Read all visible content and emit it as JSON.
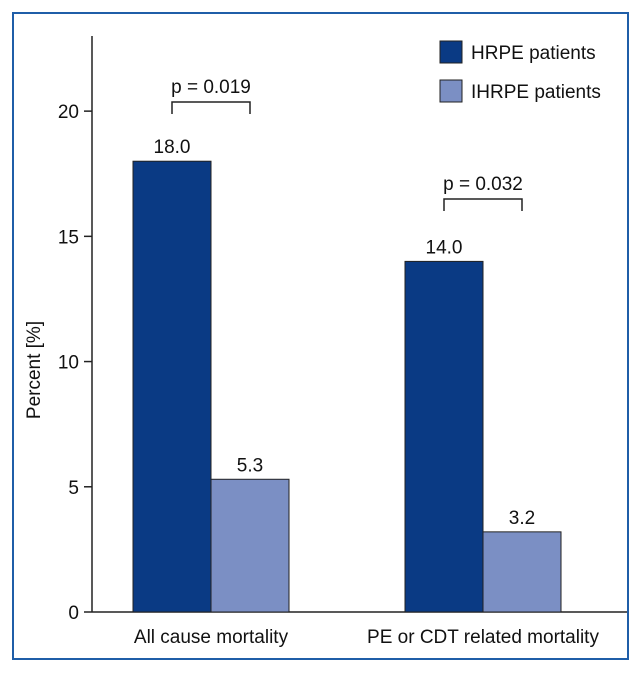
{
  "chart_data": {
    "type": "bar",
    "title": "",
    "xlabel": "",
    "ylabel": "Percent [%]",
    "ylim": [
      0,
      23
    ],
    "yticks": [
      0,
      5,
      10,
      15,
      20
    ],
    "categories": [
      "All cause mortality",
      "PE or CDT related mortality"
    ],
    "series": [
      {
        "name": "HRPE patients",
        "values": [
          18.0,
          14.0
        ],
        "labels": [
          "18.0",
          "14.0"
        ],
        "color": "#0a3a84"
      },
      {
        "name": "IHRPE patients",
        "values": [
          5.3,
          3.2
        ],
        "labels": [
          "5.3",
          "3.2"
        ],
        "color": "#7b8fc4"
      }
    ],
    "annotations": [
      "p = 0.019",
      "p = 0.032"
    ],
    "legend_position": "top-right"
  },
  "colors": {
    "frame": "#1f5ea8",
    "axis": "#222222"
  }
}
